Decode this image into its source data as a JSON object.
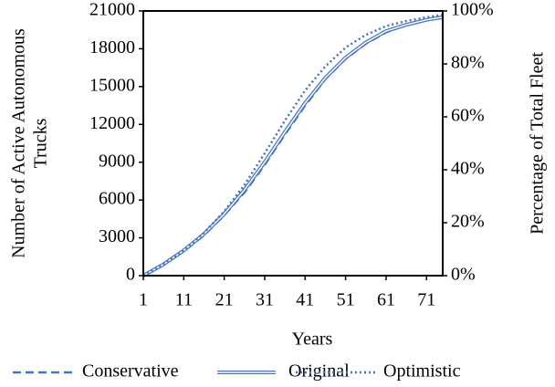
{
  "chart_data": {
    "type": "line",
    "xlabel": "Years",
    "ylabel": [
      "Number of Active Autonomous",
      "Trucks"
    ],
    "y2label": "Percentage of Total Fleet",
    "x": [
      1,
      6,
      11,
      16,
      21,
      26,
      31,
      36,
      41,
      46,
      51,
      56,
      61,
      66,
      71,
      75
    ],
    "series": [
      {
        "name": "Conservative",
        "color": "#4472c4",
        "style": "dashed",
        "values": [
          0,
          850,
          1950,
          3200,
          4800,
          6600,
          8800,
          11200,
          13500,
          15600,
          17200,
          18400,
          19300,
          19900,
          20300,
          20500
        ]
      },
      {
        "name": "Original",
        "color": "#4472c4",
        "style": "double",
        "values": [
          0,
          900,
          2000,
          3300,
          4900,
          6800,
          9000,
          11400,
          13700,
          15700,
          17300,
          18500,
          19400,
          19900,
          20300,
          20500
        ]
      },
      {
        "name": "Optimistic",
        "color": "#4472c4",
        "style": "dotted",
        "values": [
          0,
          900,
          2000,
          3400,
          5100,
          7200,
          9700,
          12300,
          14700,
          16600,
          18100,
          19100,
          19800,
          20200,
          20500,
          20700
        ]
      }
    ],
    "xlim": [
      1,
      75
    ],
    "xticks": [
      1,
      11,
      21,
      31,
      41,
      51,
      61,
      71
    ],
    "ylim": [
      0,
      21000
    ],
    "yticks": [
      0,
      3000,
      6000,
      9000,
      12000,
      15000,
      18000,
      21000
    ],
    "y2lim": [
      0,
      100
    ],
    "y2ticks": [
      {
        "value": 0,
        "label": "0%"
      },
      {
        "value": 20,
        "label": "20%"
      },
      {
        "value": 40,
        "label": "40%"
      },
      {
        "value": 60,
        "label": "60%"
      },
      {
        "value": 80,
        "label": "80%"
      },
      {
        "value": 100,
        "label": "100%"
      }
    ],
    "legend": "bottom"
  }
}
